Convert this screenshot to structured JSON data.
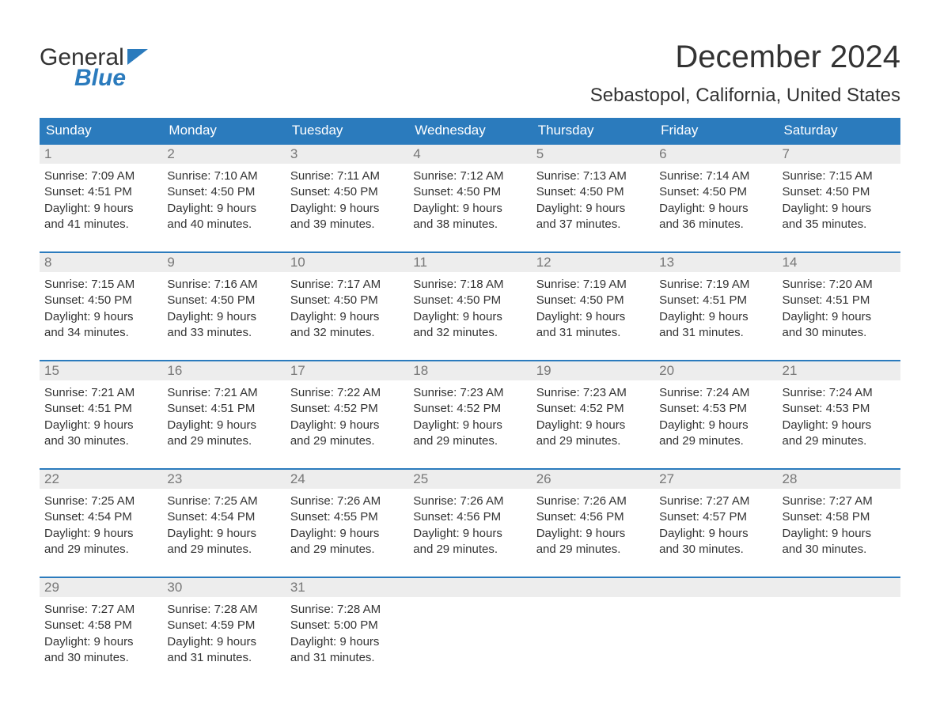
{
  "logo": {
    "text1": "General",
    "text2": "Blue",
    "tri_color": "#2b7bbd"
  },
  "title": "December 2024",
  "location": "Sebastopol, California, United States",
  "colors": {
    "header_bg": "#2b7bbd",
    "header_text": "#ffffff",
    "daynum_bg": "#ededed",
    "daynum_text": "#777777",
    "body_text": "#333333",
    "week_border": "#2b7bbd",
    "page_bg": "#ffffff"
  },
  "fonts": {
    "title_size": 40,
    "location_size": 24,
    "weekday_size": 17,
    "daynum_size": 17,
    "body_size": 15
  },
  "weekdays": [
    "Sunday",
    "Monday",
    "Tuesday",
    "Wednesday",
    "Thursday",
    "Friday",
    "Saturday"
  ],
  "weeks": [
    [
      {
        "n": "1",
        "sunrise": "7:09 AM",
        "sunset": "4:51 PM",
        "d1": "Daylight: 9 hours",
        "d2": "and 41 minutes."
      },
      {
        "n": "2",
        "sunrise": "7:10 AM",
        "sunset": "4:50 PM",
        "d1": "Daylight: 9 hours",
        "d2": "and 40 minutes."
      },
      {
        "n": "3",
        "sunrise": "7:11 AM",
        "sunset": "4:50 PM",
        "d1": "Daylight: 9 hours",
        "d2": "and 39 minutes."
      },
      {
        "n": "4",
        "sunrise": "7:12 AM",
        "sunset": "4:50 PM",
        "d1": "Daylight: 9 hours",
        "d2": "and 38 minutes."
      },
      {
        "n": "5",
        "sunrise": "7:13 AM",
        "sunset": "4:50 PM",
        "d1": "Daylight: 9 hours",
        "d2": "and 37 minutes."
      },
      {
        "n": "6",
        "sunrise": "7:14 AM",
        "sunset": "4:50 PM",
        "d1": "Daylight: 9 hours",
        "d2": "and 36 minutes."
      },
      {
        "n": "7",
        "sunrise": "7:15 AM",
        "sunset": "4:50 PM",
        "d1": "Daylight: 9 hours",
        "d2": "and 35 minutes."
      }
    ],
    [
      {
        "n": "8",
        "sunrise": "7:15 AM",
        "sunset": "4:50 PM",
        "d1": "Daylight: 9 hours",
        "d2": "and 34 minutes."
      },
      {
        "n": "9",
        "sunrise": "7:16 AM",
        "sunset": "4:50 PM",
        "d1": "Daylight: 9 hours",
        "d2": "and 33 minutes."
      },
      {
        "n": "10",
        "sunrise": "7:17 AM",
        "sunset": "4:50 PM",
        "d1": "Daylight: 9 hours",
        "d2": "and 32 minutes."
      },
      {
        "n": "11",
        "sunrise": "7:18 AM",
        "sunset": "4:50 PM",
        "d1": "Daylight: 9 hours",
        "d2": "and 32 minutes."
      },
      {
        "n": "12",
        "sunrise": "7:19 AM",
        "sunset": "4:50 PM",
        "d1": "Daylight: 9 hours",
        "d2": "and 31 minutes."
      },
      {
        "n": "13",
        "sunrise": "7:19 AM",
        "sunset": "4:51 PM",
        "d1": "Daylight: 9 hours",
        "d2": "and 31 minutes."
      },
      {
        "n": "14",
        "sunrise": "7:20 AM",
        "sunset": "4:51 PM",
        "d1": "Daylight: 9 hours",
        "d2": "and 30 minutes."
      }
    ],
    [
      {
        "n": "15",
        "sunrise": "7:21 AM",
        "sunset": "4:51 PM",
        "d1": "Daylight: 9 hours",
        "d2": "and 30 minutes."
      },
      {
        "n": "16",
        "sunrise": "7:21 AM",
        "sunset": "4:51 PM",
        "d1": "Daylight: 9 hours",
        "d2": "and 29 minutes."
      },
      {
        "n": "17",
        "sunrise": "7:22 AM",
        "sunset": "4:52 PM",
        "d1": "Daylight: 9 hours",
        "d2": "and 29 minutes."
      },
      {
        "n": "18",
        "sunrise": "7:23 AM",
        "sunset": "4:52 PM",
        "d1": "Daylight: 9 hours",
        "d2": "and 29 minutes."
      },
      {
        "n": "19",
        "sunrise": "7:23 AM",
        "sunset": "4:52 PM",
        "d1": "Daylight: 9 hours",
        "d2": "and 29 minutes."
      },
      {
        "n": "20",
        "sunrise": "7:24 AM",
        "sunset": "4:53 PM",
        "d1": "Daylight: 9 hours",
        "d2": "and 29 minutes."
      },
      {
        "n": "21",
        "sunrise": "7:24 AM",
        "sunset": "4:53 PM",
        "d1": "Daylight: 9 hours",
        "d2": "and 29 minutes."
      }
    ],
    [
      {
        "n": "22",
        "sunrise": "7:25 AM",
        "sunset": "4:54 PM",
        "d1": "Daylight: 9 hours",
        "d2": "and 29 minutes."
      },
      {
        "n": "23",
        "sunrise": "7:25 AM",
        "sunset": "4:54 PM",
        "d1": "Daylight: 9 hours",
        "d2": "and 29 minutes."
      },
      {
        "n": "24",
        "sunrise": "7:26 AM",
        "sunset": "4:55 PM",
        "d1": "Daylight: 9 hours",
        "d2": "and 29 minutes."
      },
      {
        "n": "25",
        "sunrise": "7:26 AM",
        "sunset": "4:56 PM",
        "d1": "Daylight: 9 hours",
        "d2": "and 29 minutes."
      },
      {
        "n": "26",
        "sunrise": "7:26 AM",
        "sunset": "4:56 PM",
        "d1": "Daylight: 9 hours",
        "d2": "and 29 minutes."
      },
      {
        "n": "27",
        "sunrise": "7:27 AM",
        "sunset": "4:57 PM",
        "d1": "Daylight: 9 hours",
        "d2": "and 30 minutes."
      },
      {
        "n": "28",
        "sunrise": "7:27 AM",
        "sunset": "4:58 PM",
        "d1": "Daylight: 9 hours",
        "d2": "and 30 minutes."
      }
    ],
    [
      {
        "n": "29",
        "sunrise": "7:27 AM",
        "sunset": "4:58 PM",
        "d1": "Daylight: 9 hours",
        "d2": "and 30 minutes."
      },
      {
        "n": "30",
        "sunrise": "7:28 AM",
        "sunset": "4:59 PM",
        "d1": "Daylight: 9 hours",
        "d2": "and 31 minutes."
      },
      {
        "n": "31",
        "sunrise": "7:28 AM",
        "sunset": "5:00 PM",
        "d1": "Daylight: 9 hours",
        "d2": "and 31 minutes."
      },
      null,
      null,
      null,
      null
    ]
  ],
  "labels": {
    "sunrise": "Sunrise: ",
    "sunset": "Sunset: "
  }
}
